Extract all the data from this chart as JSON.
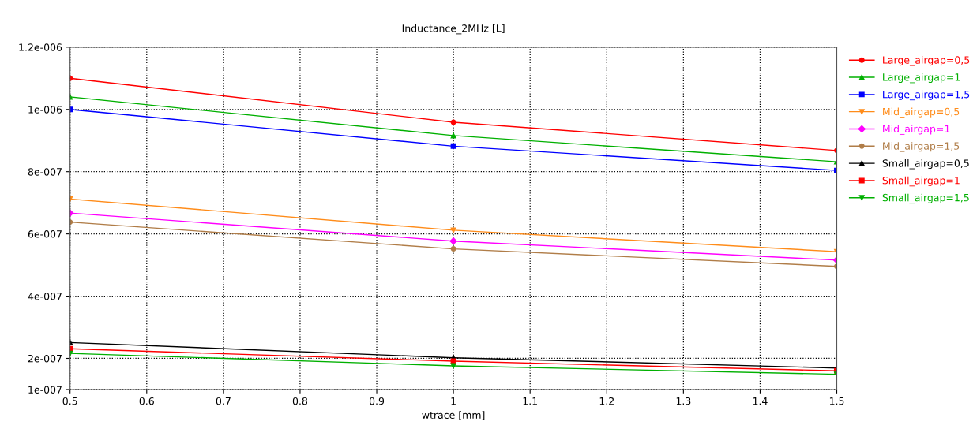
{
  "chart_data": {
    "type": "line",
    "title": "Inductance_2MHz [L]",
    "xlabel": "wtrace [mm]",
    "x": [
      0.5,
      1,
      1.5
    ],
    "series": [
      {
        "name": "Large_airgap=0,5",
        "color": "#ff0000",
        "marker": "circle",
        "values": [
          1.1e-06,
          9.59e-07,
          8.68e-07
        ]
      },
      {
        "name": "Large_airgap=1",
        "color": "#00b000",
        "marker": "triangle",
        "values": [
          1.04e-06,
          9.16e-07,
          8.32e-07
        ]
      },
      {
        "name": "Large_airgap=1,5",
        "color": "#0000ff",
        "marker": "square",
        "values": [
          1e-06,
          8.82e-07,
          8.04e-07
        ]
      },
      {
        "name": "Mid_airgap=0,5",
        "color": "#ff8c1a",
        "marker": "triangle_down",
        "values": [
          7.12e-07,
          6.12e-07,
          5.43e-07
        ]
      },
      {
        "name": "Mid_airgap=1",
        "color": "#ff00ff",
        "marker": "diamond",
        "values": [
          6.67e-07,
          5.77e-07,
          5.16e-07
        ]
      },
      {
        "name": "Mid_airgap=1,5",
        "color": "#b07d48",
        "marker": "circle",
        "values": [
          6.38e-07,
          5.52e-07,
          4.96e-07
        ]
      },
      {
        "name": "Small_airgap=0,5",
        "color": "#000000",
        "marker": "triangle",
        "values": [
          2.51e-07,
          2.02e-07,
          1.69e-07
        ]
      },
      {
        "name": "Small_airgap=1",
        "color": "#ff0000",
        "marker": "square",
        "values": [
          2.31e-07,
          1.91e-07,
          1.6e-07
        ]
      },
      {
        "name": "Small_airgap=1,5",
        "color": "#00b000",
        "marker": "triangle_down",
        "values": [
          2.16e-07,
          1.76e-07,
          1.49e-07
        ]
      }
    ],
    "xlim": [
      0.5,
      1.5
    ],
    "xticks": [
      0.5,
      0.6,
      0.7,
      0.8,
      0.9,
      1,
      1.1,
      1.2,
      1.3,
      1.4,
      1.5
    ],
    "ylim": [
      1e-07,
      1.2e-06
    ],
    "yticks": [
      {
        "value": 1e-07,
        "label": "1e-007"
      },
      {
        "value": 2e-07,
        "label": "2e-007"
      },
      {
        "value": 4e-07,
        "label": "4e-007"
      },
      {
        "value": 6e-07,
        "label": "6e-007"
      },
      {
        "value": 8e-07,
        "label": "8e-007"
      },
      {
        "value": 1e-06,
        "label": "1e-006"
      },
      {
        "value": 1.2e-06,
        "label": "1.2e-006"
      }
    ],
    "grid": true,
    "legend": "right",
    "line_style": "solid"
  }
}
